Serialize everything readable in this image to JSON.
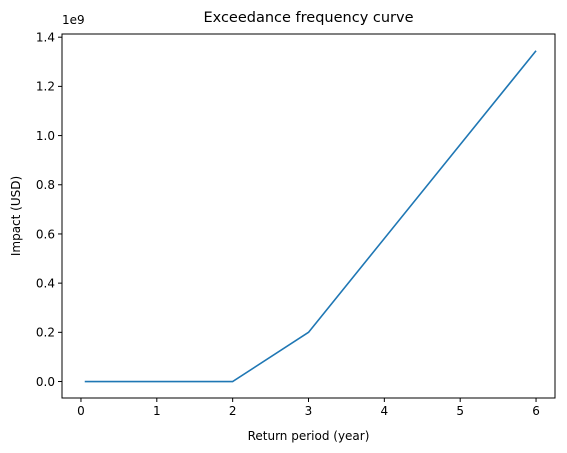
{
  "chart_data": {
    "type": "line",
    "title": "Exceedance frequency curve",
    "xlabel": "Return period (year)",
    "ylabel": "Impact (USD)",
    "y_offset_label": "1e9",
    "xlim": [
      -0.25,
      6.25
    ],
    "ylim": [
      -0.067,
      1.413
    ],
    "xticks": [
      0,
      1,
      2,
      3,
      4,
      5,
      6
    ],
    "xtick_labels": [
      "0",
      "1",
      "2",
      "3",
      "4",
      "5",
      "6"
    ],
    "yticks": [
      0.0,
      0.2,
      0.4,
      0.6,
      0.8,
      1.0,
      1.2,
      1.4
    ],
    "ytick_labels": [
      "0.0",
      "0.2",
      "0.4",
      "0.6",
      "0.8",
      "1.0",
      "1.2",
      "1.4"
    ],
    "grid": false,
    "series": [
      {
        "color": "#1f77b4",
        "x": [
          0.05,
          2,
          3,
          6
        ],
        "y": [
          0.0,
          0.0,
          0.2,
          1.345
        ]
      }
    ]
  }
}
